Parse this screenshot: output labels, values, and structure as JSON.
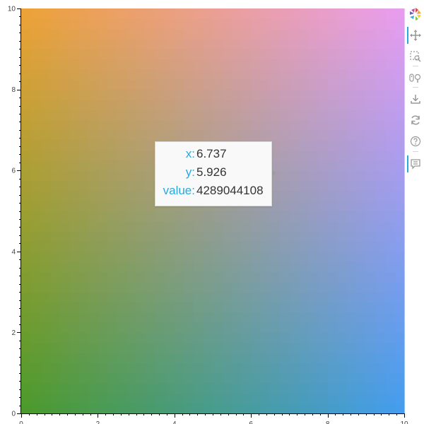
{
  "chart_data": {
    "type": "heatmap",
    "xlim": [
      0,
      10
    ],
    "ylim": [
      0,
      10
    ],
    "xticks": [
      0,
      2,
      4,
      6,
      8,
      10
    ],
    "yticks": [
      0,
      2,
      4,
      6,
      8,
      10
    ],
    "xtick_labels": [
      "0",
      "2",
      "4",
      "6",
      "8",
      "10"
    ],
    "ytick_labels": [
      "0",
      "2",
      "4",
      "6",
      "8",
      "10"
    ],
    "grid": false,
    "color_corners": {
      "bottom_left": "#4a9a2b",
      "bottom_right": "#429def",
      "top_left": "#eea236",
      "top_right": "#e99df0"
    }
  },
  "tooltip": {
    "x_label": "x:",
    "x_value": "6.737",
    "y_label": "y:",
    "y_value": "5.926",
    "value_label": "value:",
    "value_value": "4289044108"
  },
  "toolbar": {
    "items": [
      "bokeh-logo-icon",
      "pan-icon",
      "box-zoom-icon",
      "wheel-zoom-icon",
      "save-icon",
      "reset-icon",
      "help-icon",
      "hover-icon"
    ],
    "accent": "#26aae1"
  }
}
